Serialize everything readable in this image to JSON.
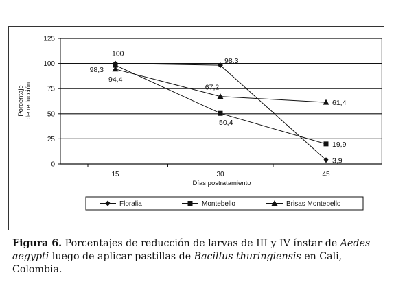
{
  "chart_data": {
    "type": "line",
    "categories": [
      "15",
      "30",
      "45"
    ],
    "xlabel": "Días postratamiento",
    "ylabel": "Porcentaje de reducción",
    "ylabel_lines": [
      "Porcentaje",
      "de reducción"
    ],
    "ylim": [
      0,
      125
    ],
    "yticks": [
      "0",
      "25",
      "50",
      "75",
      "100",
      "125"
    ],
    "grid": true,
    "legend_position": "bottom",
    "series": [
      {
        "name": "Floralia",
        "marker": "diamond",
        "values": [
          100,
          98.3,
          3.9
        ],
        "labels": [
          "100",
          "98,3",
          "3,9"
        ]
      },
      {
        "name": "Montebello",
        "marker": "square",
        "values": [
          98.3,
          50.4,
          19.9
        ],
        "labels": [
          "98,3",
          "50,4",
          "19,9"
        ]
      },
      {
        "name": "Brisas Montebello",
        "marker": "triangle",
        "values": [
          94.4,
          67.2,
          61.4
        ],
        "labels": [
          "94,4",
          "67,2",
          "61,4"
        ]
      }
    ]
  },
  "caption": {
    "figure_label": "Figura 6.",
    "text_1": " Porcentajes de reducción de larvas de III y IV ínstar de ",
    "species": "Aedes aegypti",
    "text_2": " luego de aplicar pastillas de ",
    "bacterium": "Bacillus thuringiensis",
    "text_3": " en Cali, Colombia."
  }
}
